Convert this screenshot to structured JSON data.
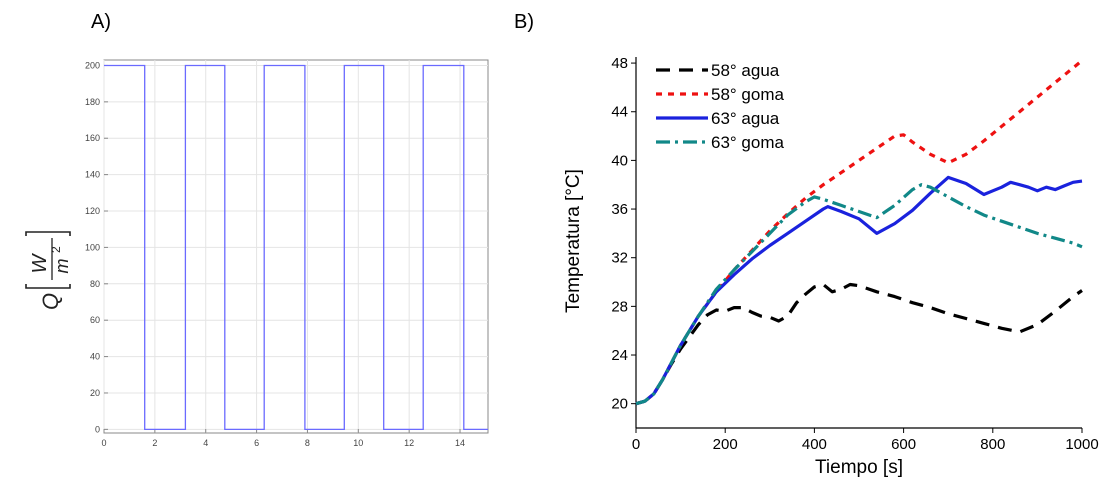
{
  "chart_data": [
    {
      "panel_label": "A)",
      "type": "line",
      "title": "",
      "xlabel": "",
      "ylabel": "Q",
      "ylabel_unit": {
        "numerator": "W",
        "denominator": "m",
        "exponent": "2"
      },
      "xlim": [
        0,
        15.1
      ],
      "ylim": [
        -2,
        203
      ],
      "xticks": [
        0,
        2,
        4,
        6,
        8,
        10,
        12,
        14
      ],
      "yticks": [
        0,
        20,
        40,
        60,
        80,
        100,
        120,
        140,
        160,
        180,
        200
      ],
      "grid": true,
      "color": "#6a6aff",
      "series": [
        {
          "x": [
            0,
            1.6,
            1.6,
            3.2,
            3.2,
            4.75,
            4.75,
            6.3,
            6.3,
            7.9,
            7.9,
            9.45,
            9.45,
            11.0,
            11.0,
            12.55,
            12.55,
            14.15,
            14.15,
            15.1
          ],
          "y": [
            200,
            200,
            0,
            0,
            200,
            200,
            0,
            0,
            200,
            200,
            0,
            0,
            200,
            200,
            0,
            0,
            200,
            200,
            0,
            0
          ]
        }
      ]
    },
    {
      "panel_label": "B)",
      "type": "line",
      "title": "",
      "xlabel": "Tiempo [s]",
      "ylabel": "Temperatura [°C]",
      "xlim": [
        0,
        1000
      ],
      "ylim": [
        18,
        48.5
      ],
      "xticks": [
        0,
        200,
        400,
        600,
        800,
        1000
      ],
      "yticks": [
        20,
        24,
        28,
        32,
        36,
        40,
        44,
        48
      ],
      "grid": false,
      "legend": "top-left",
      "series": [
        {
          "name": "58° agua",
          "color": "#000000",
          "dash": "14,9",
          "x": [
            0,
            20,
            40,
            60,
            80,
            100,
            120,
            140,
            160,
            180,
            200,
            220,
            240,
            260,
            280,
            300,
            320,
            340,
            360,
            380,
            400,
            420,
            440,
            460,
            480,
            500,
            540,
            580,
            620,
            660,
            700,
            740,
            780,
            820,
            860,
            900,
            940,
            980,
            1000
          ],
          "y": [
            20.0,
            20.2,
            20.8,
            22.0,
            23.3,
            24.5,
            25.5,
            26.5,
            27.3,
            27.7,
            27.6,
            27.9,
            27.9,
            27.5,
            27.2,
            27.1,
            26.8,
            27.2,
            28.3,
            29.0,
            29.6,
            29.8,
            29.2,
            29.4,
            29.8,
            29.7,
            29.2,
            28.8,
            28.3,
            27.9,
            27.4,
            27.0,
            26.6,
            26.2,
            25.9,
            26.5,
            27.6,
            28.8,
            29.3
          ]
        },
        {
          "name": "58° goma",
          "color": "#ee1111",
          "dash": "6,6",
          "x": [
            0,
            20,
            40,
            60,
            80,
            100,
            140,
            180,
            220,
            260,
            300,
            340,
            380,
            420,
            460,
            500,
            540,
            580,
            600,
            620,
            660,
            700,
            740,
            780,
            820,
            860,
            900,
            940,
            980,
            1000
          ],
          "y": [
            20.0,
            20.2,
            20.8,
            22.0,
            23.4,
            24.8,
            27.2,
            29.2,
            31.0,
            32.6,
            34.2,
            35.6,
            36.9,
            38.0,
            39.0,
            40.0,
            41.0,
            42.0,
            42.1,
            41.5,
            40.5,
            39.8,
            40.5,
            41.6,
            42.8,
            44.0,
            45.2,
            46.4,
            47.6,
            48.2
          ]
        },
        {
          "name": "63° agua",
          "color": "#1a22dd",
          "dash": "",
          "x": [
            0,
            20,
            40,
            60,
            80,
            100,
            140,
            180,
            220,
            260,
            300,
            340,
            380,
            420,
            430,
            460,
            500,
            540,
            580,
            620,
            660,
            700,
            740,
            780,
            800,
            820,
            840,
            860,
            880,
            900,
            920,
            940,
            960,
            980,
            1000
          ],
          "y": [
            20.0,
            20.2,
            20.8,
            22.0,
            23.4,
            24.8,
            27.2,
            29.2,
            30.6,
            31.9,
            33.0,
            34.0,
            35.0,
            36.0,
            36.2,
            35.8,
            35.2,
            34.0,
            34.8,
            35.9,
            37.3,
            38.6,
            38.1,
            37.2,
            37.5,
            37.8,
            38.2,
            38.0,
            37.8,
            37.5,
            37.8,
            37.6,
            37.9,
            38.2,
            38.3
          ]
        },
        {
          "name": "63° goma",
          "color": "#118888",
          "dash": "14,5,3,5",
          "x": [
            0,
            20,
            40,
            60,
            80,
            100,
            140,
            180,
            220,
            260,
            300,
            340,
            380,
            400,
            420,
            460,
            500,
            540,
            580,
            620,
            640,
            660,
            700,
            740,
            780,
            820,
            860,
            900,
            940,
            980,
            1000
          ],
          "y": [
            20.0,
            20.2,
            20.8,
            22.0,
            23.4,
            24.8,
            27.2,
            29.4,
            31.0,
            32.5,
            34.0,
            35.5,
            36.6,
            37.0,
            36.8,
            36.3,
            35.8,
            35.3,
            36.3,
            37.6,
            38.0,
            37.8,
            37.0,
            36.2,
            35.5,
            35.0,
            34.5,
            34.0,
            33.6,
            33.2,
            32.9
          ]
        }
      ]
    }
  ]
}
